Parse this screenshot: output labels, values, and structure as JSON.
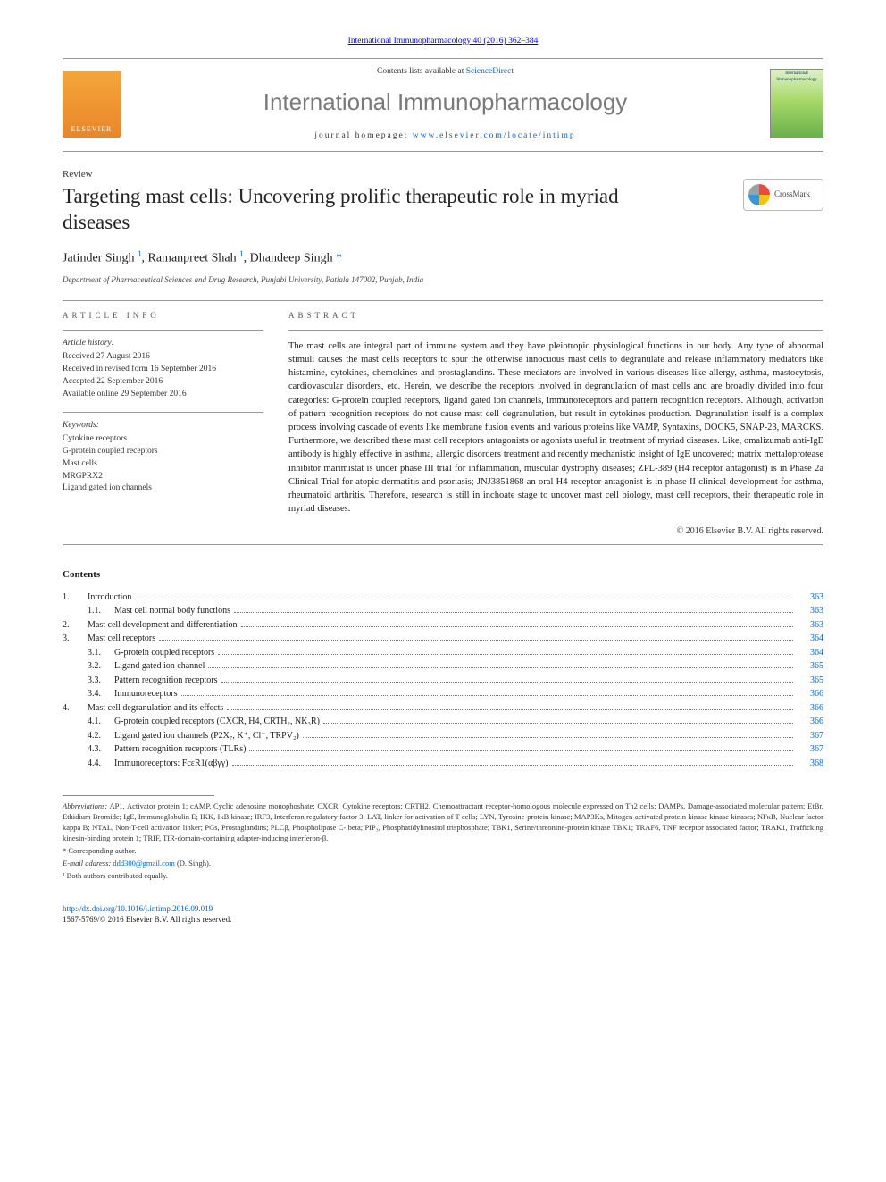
{
  "top_link": {
    "text_prefix": "",
    "link": "International Immunopharmacology 40 (2016) 362–384"
  },
  "masthead": {
    "contents_prefix": "Contents lists available at ",
    "contents_link": "ScienceDirect",
    "journal_title": "International Immunopharmacology",
    "homepage_prefix": "journal homepage: ",
    "homepage_url": "www.elsevier.com/locate/intimp",
    "publisher_logo_text": "ELSEVIER",
    "cover_text": "International Immunopharmacology"
  },
  "article": {
    "type": "Review",
    "title": "Targeting mast cells: Uncovering prolific therapeutic role in myriad diseases",
    "crossmark": "CrossMark",
    "authors_html": "Jatinder Singh <sup>1</sup>, Ramanpreet Shah <sup>1</sup>, Dhandeep Singh <a class='corr' href='#'>*</a>",
    "affiliation": "Department of Pharmaceutical Sciences and Drug Research, Punjabi University, Patiala 147002, Punjab, India"
  },
  "article_info": {
    "heading": "article info",
    "history_label": "Article history:",
    "history": [
      "Received 27 August 2016",
      "Received in revised form 16 September 2016",
      "Accepted 22 September 2016",
      "Available online 29 September 2016"
    ],
    "keywords_label": "Keywords:",
    "keywords": [
      "Cytokine receptors",
      "G-protein coupled receptors",
      "Mast cells",
      "MRGPRX2",
      "Ligand gated ion channels"
    ]
  },
  "abstract": {
    "heading": "abstract",
    "text": "The mast cells are integral part of immune system and they have pleiotropic physiological functions in our body. Any type of abnormal stimuli causes the mast cells receptors to spur the otherwise innocuous mast cells to degranulate and release inflammatory mediators like histamine, cytokines, chemokines and prostaglandins. These mediators are involved in various diseases like allergy, asthma, mastocytosis, cardiovascular disorders, etc. Herein, we describe the receptors involved in degranulation of mast cells and are broadly divided into four categories: G-protein coupled receptors, ligand gated ion channels, immunoreceptors and pattern recognition receptors. Although, activation of pattern recognition receptors do not cause mast cell degranulation, but result in cytokines production. Degranulation itself is a complex process involving cascade of events like membrane fusion events and various proteins like VAMP, Syntaxins, DOCK5, SNAP-23, MARCKS. Furthermore, we described these mast cell receptors antagonists or agonists useful in treatment of myriad diseases. Like, omalizumab anti-IgE antibody is highly effective in asthma, allergic disorders treatment and recently mechanistic insight of IgE uncovered; matrix mettaloprotease inhibitor marimistat is under phase III trial for inflammation, muscular dystrophy diseases; ZPL-389 (H4 receptor antagonist) is in Phase 2a Clinical Trial for atopic dermatitis and psoriasis; JNJ3851868 an oral H4 receptor antagonist is in phase II clinical development for asthma, rheumatoid arthritis. Therefore, research is still in inchoate stage to uncover mast cell biology, mast cell receptors, their therapeutic role in myriad diseases.",
    "copyright": "© 2016 Elsevier B.V. All rights reserved."
  },
  "contents": {
    "heading": "Contents",
    "items": [
      {
        "num": "1.",
        "label": "Introduction",
        "page": "363",
        "level": 0
      },
      {
        "num": "1.1.",
        "label": "Mast cell normal body functions",
        "page": "363",
        "level": 1
      },
      {
        "num": "2.",
        "label": "Mast cell development and differentiation",
        "page": "363",
        "level": 0
      },
      {
        "num": "3.",
        "label": "Mast cell receptors",
        "page": "364",
        "level": 0
      },
      {
        "num": "3.1.",
        "label": "G-protein coupled receptors",
        "page": "364",
        "level": 1
      },
      {
        "num": "3.2.",
        "label": "Ligand gated ion channel",
        "page": "365",
        "level": 1
      },
      {
        "num": "3.3.",
        "label": "Pattern recognition receptors",
        "page": "365",
        "level": 1
      },
      {
        "num": "3.4.",
        "label": "Immunoreceptors",
        "page": "366",
        "level": 1
      },
      {
        "num": "4.",
        "label": "Mast cell degranulation and its effects",
        "page": "366",
        "level": 0
      },
      {
        "num": "4.1.",
        "label": "G-protein coupled receptors (CXCR, H4, CRTH₂, NK₃R)",
        "page": "366",
        "level": 1
      },
      {
        "num": "4.2.",
        "label": "Ligand gated ion channels (P2X₇, K⁺, Cl⁻, TRPV₂)",
        "page": "367",
        "level": 1
      },
      {
        "num": "4.3.",
        "label": "Pattern recognition receptors (TLRs)",
        "page": "367",
        "level": 1
      },
      {
        "num": "4.4.",
        "label": "Immunoreceptors: FcεR1(αβγγ)",
        "page": "368",
        "level": 1
      }
    ]
  },
  "footnotes": {
    "abbrev_label": "Abbreviations:",
    "abbrev_text": " AP1, Activator protein 1; cAMP, Cyclic adenosine monophoshate; CXCR, Cytokine receptors; CRTH2, Chemoattractant receptor-homologous molecule expressed on Th2 cells; DAMPs, Damage-associated molecular pattern; EtBr, Ethidium Bromide; IgE, Immunoglobulin E; IKK, IκB kinase; IRF3, Interferon regulatory factor 3; LAT, linker for activation of T cells; LYN, Tyrosine-protein kinase; MAP3Ks, Mitogen-activated protein kinase kinase kinases; NFκB, Nuclear factor kappa B; NTAL, Non-T-cell activation linker; PGs, Prostaglandins; PLCβ, Phospholipase C- beta; PIP₃, Phosphatidylinositol trisphosphate; TBK1, Serine/threonine-protein kinase TBK1; TRAF6, TNF receptor associated factor; TRAK1, Trafficking kinesin-binding protein 1; TRIF, TIR-domain-containing adapter-inducing interferon-β.",
    "corr": "* Corresponding author.",
    "email_label": "E-mail address: ",
    "email": "ddd300@gmail.com",
    "email_suffix": " (D. Singh).",
    "equal": "¹ Both authors contributed equally."
  },
  "doi": {
    "url": "http://dx.doi.org/10.1016/j.intimp.2016.09.019",
    "issn_line": "1567-5769/© 2016 Elsevier B.V. All rights reserved."
  },
  "colors": {
    "link": "#0066cc",
    "text": "#1a1a1a",
    "rule": "#9a9a9a",
    "journal_gray": "#7a7a7a"
  },
  "typography": {
    "body_pt": 10.5,
    "title_pt": 23,
    "journal_pt": 26,
    "footnote_pt": 8.5
  }
}
